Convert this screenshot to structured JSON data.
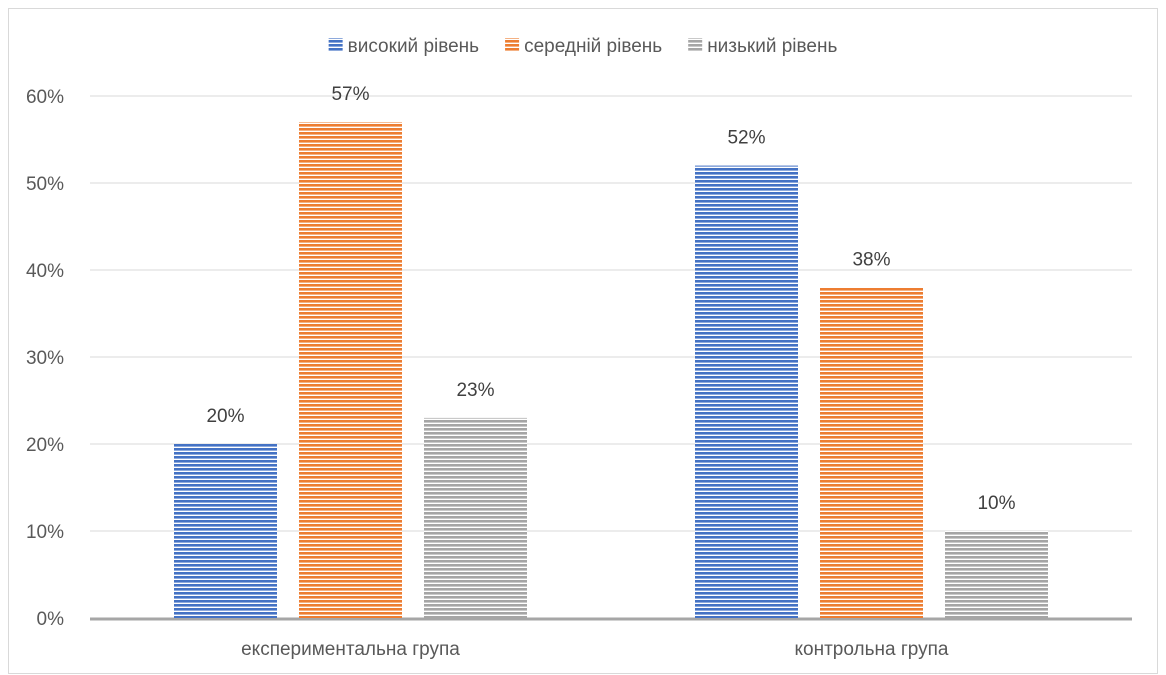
{
  "chart_data": {
    "type": "bar",
    "title": "",
    "xlabel": "",
    "ylabel": "",
    "categories": [
      "експериментальна група",
      "контрольна група"
    ],
    "series": [
      {
        "name": "високий рівень",
        "values": [
          20,
          52
        ],
        "labels": [
          "20%",
          "52%"
        ],
        "color": "#4472C4"
      },
      {
        "name": "середній рівень",
        "values": [
          57,
          38
        ],
        "labels": [
          "57%",
          "38%"
        ],
        "color": "#ED7D31"
      },
      {
        "name": "низький рівень",
        "values": [
          23,
          10
        ],
        "labels": [
          "23%",
          "10%"
        ],
        "color": "#A5A5A5"
      }
    ],
    "ylim": [
      0,
      60
    ],
    "yticks": [
      0,
      10,
      20,
      30,
      40,
      50,
      60
    ],
    "ytick_labels": [
      "0%",
      "10%",
      "20%",
      "30%",
      "40%",
      "50%",
      "60%"
    ],
    "grid": true,
    "legend_position": "top-center",
    "bar_pattern": "horizontal-stripes"
  }
}
